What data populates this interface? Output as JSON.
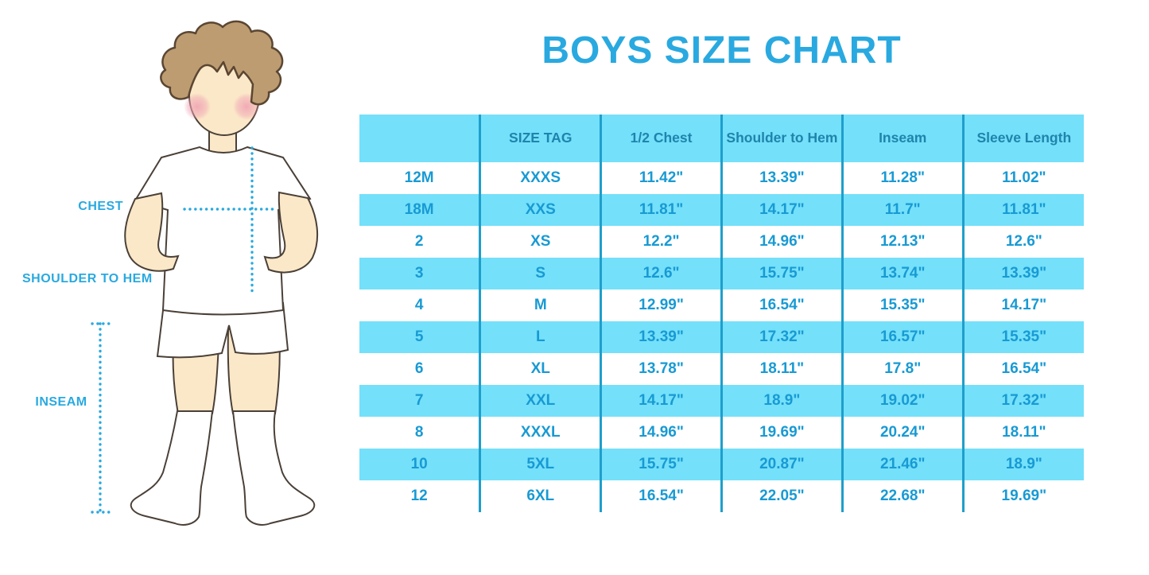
{
  "title": "BOYS SIZE CHART",
  "colors": {
    "accent": "#29A9E0",
    "table_stripe": "#74E0FA",
    "table_divider": "#1E9FCB",
    "header_text": "#1F84AC",
    "cell_text": "#189AD3",
    "skin": "#FBE8C8",
    "hair": "#BD9C72",
    "cheek": "#F0A4B4",
    "outline": "#4A4038"
  },
  "figure": {
    "labels": {
      "chest": "CHEST",
      "shoulder_to_hem": "SHOULDER TO HEM",
      "inseam": "INSEAM"
    }
  },
  "chart_data": {
    "type": "table",
    "title": "BOYS SIZE CHART",
    "columns": [
      "",
      "SIZE TAG",
      "1/2 Chest",
      "Shoulder to Hem",
      "Inseam",
      "Sleeve Length"
    ],
    "rows": [
      [
        "12M",
        "XXXS",
        "11.42\"",
        "13.39\"",
        "11.28\"",
        "11.02\""
      ],
      [
        "18M",
        "XXS",
        "11.81\"",
        "14.17\"",
        "11.7\"",
        "11.81\""
      ],
      [
        "2",
        "XS",
        "12.2\"",
        "14.96\"",
        "12.13\"",
        "12.6\""
      ],
      [
        "3",
        "S",
        "12.6\"",
        "15.75\"",
        "13.74\"",
        "13.39\""
      ],
      [
        "4",
        "M",
        "12.99\"",
        "16.54\"",
        "15.35\"",
        "14.17\""
      ],
      [
        "5",
        "L",
        "13.39\"",
        "17.32\"",
        "16.57\"",
        "15.35\""
      ],
      [
        "6",
        "XL",
        "13.78\"",
        "18.11\"",
        "17.8\"",
        "16.54\""
      ],
      [
        "7",
        "XXL",
        "14.17\"",
        "18.9\"",
        "19.02\"",
        "17.32\""
      ],
      [
        "8",
        "XXXL",
        "14.96\"",
        "19.69\"",
        "20.24\"",
        "18.11\""
      ],
      [
        "10",
        "5XL",
        "15.75\"",
        "20.87\"",
        "21.46\"",
        "18.9\""
      ],
      [
        "12",
        "6XL",
        "16.54\"",
        "22.05\"",
        "22.68\"",
        "19.69\""
      ]
    ]
  }
}
